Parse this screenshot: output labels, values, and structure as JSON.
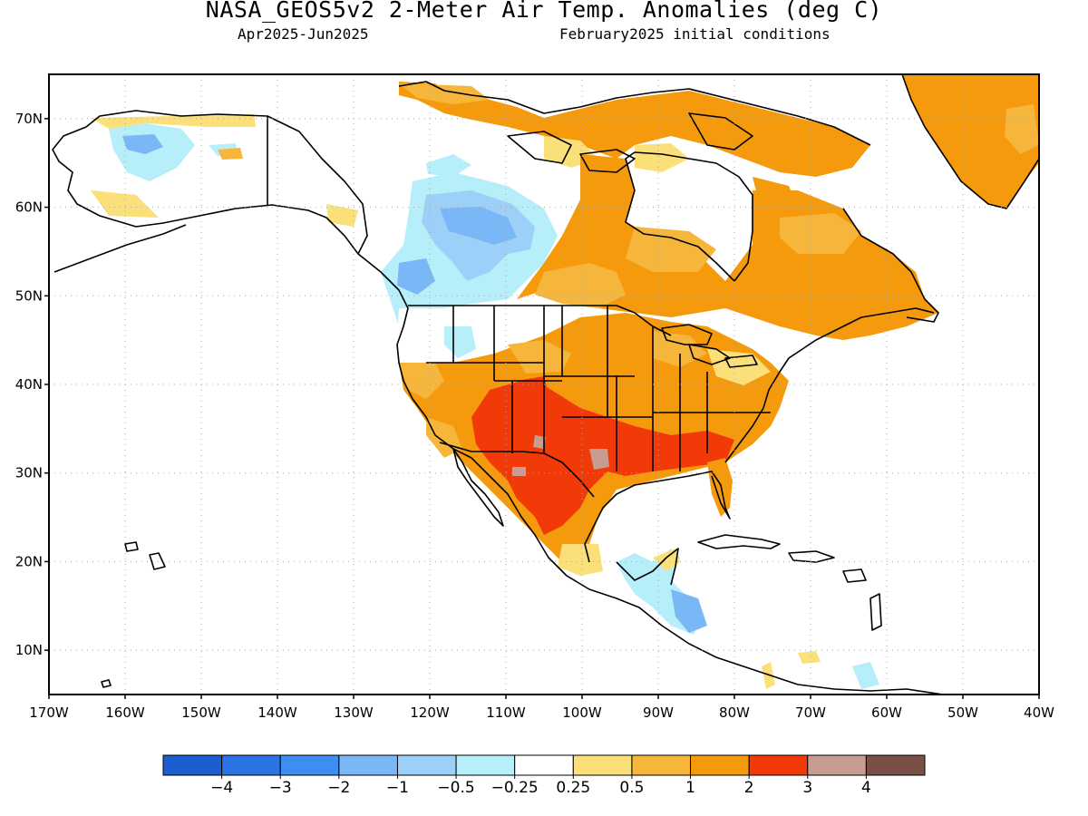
{
  "header": {
    "title": "NASA_GEOS5v2 2-Meter Air Temp. Anomalies (deg C)",
    "period": "Apr2025-Jun2025",
    "init": "February2025 initial conditions"
  },
  "map": {
    "lon_range": [
      -170,
      -40
    ],
    "lat_range": [
      5,
      75
    ],
    "lat_ticks": [
      "10N",
      "20N",
      "30N",
      "40N",
      "50N",
      "60N",
      "70N"
    ],
    "lon_ticks": [
      "170W",
      "160W",
      "150W",
      "140W",
      "130W",
      "120W",
      "110W",
      "100W",
      "90W",
      "80W",
      "70W",
      "60W",
      "50W",
      "40W"
    ],
    "land_outline_color": "#000000",
    "ocean_color": "#ffffff"
  },
  "colorbar": {
    "colors": [
      "#1a5ecf",
      "#2a74e6",
      "#3d8ef0",
      "#79b7f6",
      "#9dd0f8",
      "#b6eefa",
      "#ffffff",
      "#fbdf78",
      "#f6b63c",
      "#f59a0c",
      "#f23a08",
      "#c89c90",
      "#7a5046"
    ],
    "labels": [
      "−4",
      "−3",
      "−2",
      "−1",
      "−0.5",
      "−0.25",
      "0.25",
      "0.5",
      "1",
      "2",
      "3",
      "4"
    ]
  },
  "anomaly_regions": [
    {
      "name": "greenland",
      "color": "#f59a0c"
    },
    {
      "name": "arctic-islands",
      "color": "#f59a0c"
    },
    {
      "name": "eastern-canada",
      "color": "#f59a0c"
    },
    {
      "name": "eastern-us",
      "color": "#f59a0c"
    },
    {
      "name": "southwest-south",
      "color": "#f23a08"
    },
    {
      "name": "western-canada",
      "color": "#9dd0f8"
    },
    {
      "name": "alaska",
      "color": "#b6eefa"
    },
    {
      "name": "central-america",
      "color": "#79b7f6"
    }
  ]
}
